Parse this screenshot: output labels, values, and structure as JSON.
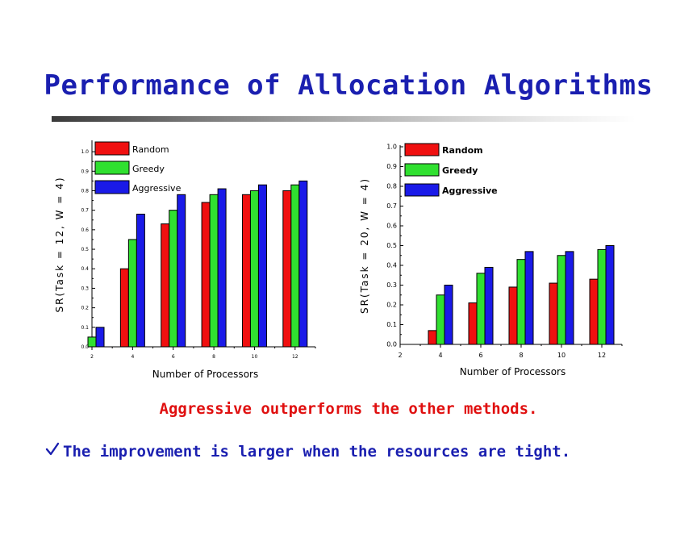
{
  "slide": {
    "title": "Performance of Allocation Algorithms",
    "caption": "Aggressive outperforms the other methods.",
    "note": "The improvement is larger when the resources are tight."
  },
  "colors": {
    "title": "#1a1fb0",
    "caption": "#e01010",
    "random": "#f01010",
    "greedy": "#30e030",
    "aggressive": "#1a1ae8"
  },
  "chart_data": [
    {
      "type": "bar",
      "xlabel": "Number of Processors",
      "ylabel": "SR(Task = 12, W = 4)",
      "x_ticks": [
        "2",
        "4",
        "6",
        "8",
        "10",
        "12"
      ],
      "y_ticks": [
        "0.0",
        "0.1",
        "0.2",
        "0.3",
        "0.4",
        "0.5",
        "0.6",
        "0.7",
        "0.8",
        "0.9",
        "1.0"
      ],
      "categories": [
        "2",
        "4",
        "6",
        "8",
        "10",
        "12"
      ],
      "ylim": [
        0,
        1.05
      ],
      "legend_position": "top-left",
      "series": [
        {
          "name": "Random",
          "values": [
            0.0,
            0.4,
            0.63,
            0.74,
            0.78,
            0.8
          ]
        },
        {
          "name": "Greedy",
          "values": [
            0.05,
            0.55,
            0.7,
            0.78,
            0.8,
            0.83
          ]
        },
        {
          "name": "Aggressive",
          "values": [
            0.1,
            0.68,
            0.78,
            0.81,
            0.83,
            0.85
          ]
        }
      ]
    },
    {
      "type": "bar",
      "xlabel": "Number of Processors",
      "ylabel": "SR(Task = 20, W = 4)",
      "x_ticks": [
        "2",
        "4",
        "6",
        "8",
        "10",
        "12"
      ],
      "y_ticks": [
        "0.0",
        "0.1",
        "0.2",
        "0.3",
        "0.4",
        "0.5",
        "0.6",
        "0.7",
        "0.8",
        "0.9",
        "1.0"
      ],
      "categories": [
        "4",
        "6",
        "8",
        "10",
        "12"
      ],
      "ylim": [
        0,
        1.0
      ],
      "legend_position": "top-left",
      "series": [
        {
          "name": "Random",
          "values": [
            0.07,
            0.21,
            0.29,
            0.31,
            0.33
          ]
        },
        {
          "name": "Greedy",
          "values": [
            0.25,
            0.36,
            0.43,
            0.45,
            0.48
          ]
        },
        {
          "name": "Aggressive",
          "values": [
            0.3,
            0.39,
            0.47,
            0.47,
            0.5
          ]
        }
      ]
    }
  ]
}
